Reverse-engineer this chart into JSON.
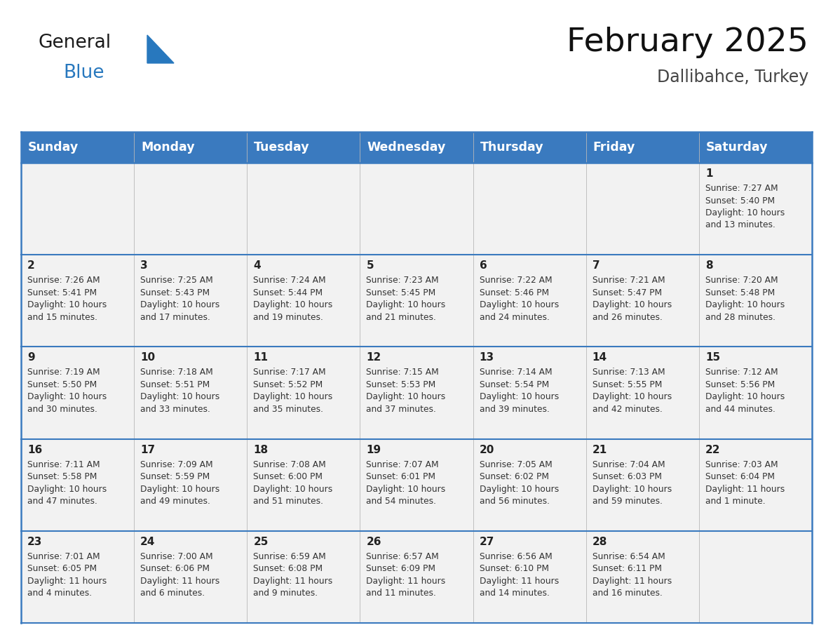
{
  "title": "February 2025",
  "subtitle": "Dallibahce, Turkey",
  "header_bg": "#3a7abf",
  "header_text_color": "#ffffff",
  "cell_bg_light": "#f2f2f2",
  "border_color": "#3a7abf",
  "border_color_light": "#b0b0b0",
  "text_color": "#222222",
  "subtext_color": "#333333",
  "days_of_week": [
    "Sunday",
    "Monday",
    "Tuesday",
    "Wednesday",
    "Thursday",
    "Friday",
    "Saturday"
  ],
  "title_fontsize": 34,
  "subtitle_fontsize": 17,
  "header_fontsize": 12.5,
  "day_num_fontsize": 11,
  "cell_fontsize": 8.8,
  "logo_general_color": "#1a1a1a",
  "logo_blue_color": "#2878be",
  "calendar_data": {
    "1": {
      "sunrise": "7:27 AM",
      "sunset": "5:40 PM",
      "daylight_hours": 10,
      "daylight_minutes": 13
    },
    "2": {
      "sunrise": "7:26 AM",
      "sunset": "5:41 PM",
      "daylight_hours": 10,
      "daylight_minutes": 15
    },
    "3": {
      "sunrise": "7:25 AM",
      "sunset": "5:43 PM",
      "daylight_hours": 10,
      "daylight_minutes": 17
    },
    "4": {
      "sunrise": "7:24 AM",
      "sunset": "5:44 PM",
      "daylight_hours": 10,
      "daylight_minutes": 19
    },
    "5": {
      "sunrise": "7:23 AM",
      "sunset": "5:45 PM",
      "daylight_hours": 10,
      "daylight_minutes": 21
    },
    "6": {
      "sunrise": "7:22 AM",
      "sunset": "5:46 PM",
      "daylight_hours": 10,
      "daylight_minutes": 24
    },
    "7": {
      "sunrise": "7:21 AM",
      "sunset": "5:47 PM",
      "daylight_hours": 10,
      "daylight_minutes": 26
    },
    "8": {
      "sunrise": "7:20 AM",
      "sunset": "5:48 PM",
      "daylight_hours": 10,
      "daylight_minutes": 28
    },
    "9": {
      "sunrise": "7:19 AM",
      "sunset": "5:50 PM",
      "daylight_hours": 10,
      "daylight_minutes": 30
    },
    "10": {
      "sunrise": "7:18 AM",
      "sunset": "5:51 PM",
      "daylight_hours": 10,
      "daylight_minutes": 33
    },
    "11": {
      "sunrise": "7:17 AM",
      "sunset": "5:52 PM",
      "daylight_hours": 10,
      "daylight_minutes": 35
    },
    "12": {
      "sunrise": "7:15 AM",
      "sunset": "5:53 PM",
      "daylight_hours": 10,
      "daylight_minutes": 37
    },
    "13": {
      "sunrise": "7:14 AM",
      "sunset": "5:54 PM",
      "daylight_hours": 10,
      "daylight_minutes": 39
    },
    "14": {
      "sunrise": "7:13 AM",
      "sunset": "5:55 PM",
      "daylight_hours": 10,
      "daylight_minutes": 42
    },
    "15": {
      "sunrise": "7:12 AM",
      "sunset": "5:56 PM",
      "daylight_hours": 10,
      "daylight_minutes": 44
    },
    "16": {
      "sunrise": "7:11 AM",
      "sunset": "5:58 PM",
      "daylight_hours": 10,
      "daylight_minutes": 47
    },
    "17": {
      "sunrise": "7:09 AM",
      "sunset": "5:59 PM",
      "daylight_hours": 10,
      "daylight_minutes": 49
    },
    "18": {
      "sunrise": "7:08 AM",
      "sunset": "6:00 PM",
      "daylight_hours": 10,
      "daylight_minutes": 51
    },
    "19": {
      "sunrise": "7:07 AM",
      "sunset": "6:01 PM",
      "daylight_hours": 10,
      "daylight_minutes": 54
    },
    "20": {
      "sunrise": "7:05 AM",
      "sunset": "6:02 PM",
      "daylight_hours": 10,
      "daylight_minutes": 56
    },
    "21": {
      "sunrise": "7:04 AM",
      "sunset": "6:03 PM",
      "daylight_hours": 10,
      "daylight_minutes": 59
    },
    "22": {
      "sunrise": "7:03 AM",
      "sunset": "6:04 PM",
      "daylight_hours": 11,
      "daylight_minutes": 1
    },
    "23": {
      "sunrise": "7:01 AM",
      "sunset": "6:05 PM",
      "daylight_hours": 11,
      "daylight_minutes": 4
    },
    "24": {
      "sunrise": "7:00 AM",
      "sunset": "6:06 PM",
      "daylight_hours": 11,
      "daylight_minutes": 6
    },
    "25": {
      "sunrise": "6:59 AM",
      "sunset": "6:08 PM",
      "daylight_hours": 11,
      "daylight_minutes": 9
    },
    "26": {
      "sunrise": "6:57 AM",
      "sunset": "6:09 PM",
      "daylight_hours": 11,
      "daylight_minutes": 11
    },
    "27": {
      "sunrise": "6:56 AM",
      "sunset": "6:10 PM",
      "daylight_hours": 11,
      "daylight_minutes": 14
    },
    "28": {
      "sunrise": "6:54 AM",
      "sunset": "6:11 PM",
      "daylight_hours": 11,
      "daylight_minutes": 16
    }
  },
  "week_layout": [
    [
      null,
      null,
      null,
      null,
      null,
      null,
      1
    ],
    [
      2,
      3,
      4,
      5,
      6,
      7,
      8
    ],
    [
      9,
      10,
      11,
      12,
      13,
      14,
      15
    ],
    [
      16,
      17,
      18,
      19,
      20,
      21,
      22
    ],
    [
      23,
      24,
      25,
      26,
      27,
      28,
      null
    ]
  ]
}
